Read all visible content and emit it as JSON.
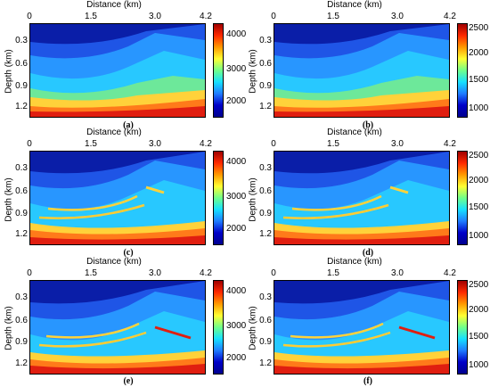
{
  "panels": [
    {
      "title": "Distance (km)",
      "ylabel": "Depth (km)",
      "x_ticks": [
        "0",
        "1.5",
        "3.0",
        "4.2"
      ],
      "y_ticks": [
        "0.3",
        "0.6",
        "0.9",
        "1.2"
      ],
      "cbar_ticks": [
        "4000",
        "3000",
        "2000"
      ],
      "caption": "(a)"
    },
    {
      "title": "Distance (km)",
      "ylabel": "Depth (km)",
      "x_ticks": [
        "0",
        "1.5",
        "3.0",
        "4.2"
      ],
      "y_ticks": [
        "0.3",
        "0.6",
        "0.9",
        "1.2"
      ],
      "cbar_ticks": [
        "2500",
        "2000",
        "1500",
        "1000"
      ],
      "caption": "(b)"
    },
    {
      "title": "Distance (km)",
      "ylabel": "Depth (km)",
      "x_ticks": [
        "0",
        "1.5",
        "3.0",
        "4.2"
      ],
      "y_ticks": [
        "0.3",
        "0.6",
        "0.9",
        "1.2"
      ],
      "cbar_ticks": [
        "4000",
        "3000",
        "2000"
      ],
      "caption": "(c)"
    },
    {
      "title": "Distance (km)",
      "ylabel": "Depth (km)",
      "x_ticks": [
        "0",
        "1.5",
        "3.0",
        "4.2"
      ],
      "y_ticks": [
        "0.3",
        "0.6",
        "0.9",
        "1.2"
      ],
      "cbar_ticks": [
        "2500",
        "2000",
        "1500",
        "1000"
      ],
      "caption": "(d)"
    },
    {
      "title": "Distance (km)",
      "ylabel": "Depth (km)",
      "x_ticks": [
        "0",
        "1.5",
        "3.0",
        "4.2"
      ],
      "y_ticks": [
        "0.3",
        "0.6",
        "0.9",
        "1.2"
      ],
      "cbar_ticks": [
        "4000",
        "3000",
        "2000"
      ],
      "caption": "(e)"
    },
    {
      "title": "Distance (km)",
      "ylabel": "Depth (km)",
      "x_ticks": [
        "0",
        "1.5",
        "3.0",
        "4.2"
      ],
      "y_ticks": [
        "0.3",
        "0.6",
        "0.9",
        "1.2"
      ],
      "cbar_ticks": [
        "2500",
        "2000",
        "1500",
        "1000"
      ],
      "caption": "(f)"
    }
  ],
  "colors": {
    "deep_blue": "#0a1ea8",
    "mid_blue": "#1e7cff",
    "cyan": "#22c8ff",
    "green": "#6de89a",
    "yellow": "#ffe43a",
    "orange": "#ff8a1a",
    "red": "#e01e10"
  }
}
